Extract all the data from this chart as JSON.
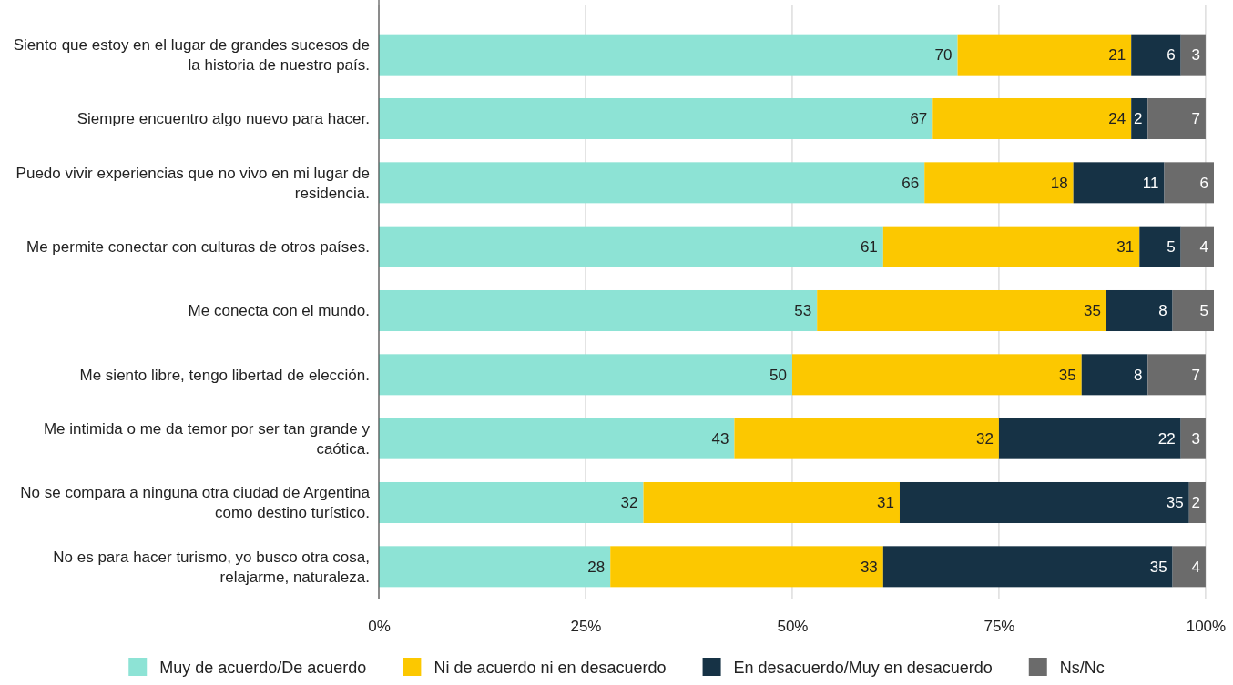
{
  "chart_data": {
    "type": "bar",
    "orientation": "horizontal",
    "stacked": true,
    "data_labels": true,
    "grid": "x",
    "legend": "bottom",
    "categories": [
      "Siento que estoy en el lugar de grandes sucesos de la historia de nuestro país.",
      "Siempre encuentro algo nuevo para hacer.",
      "Puedo vivir experiencias que no vivo en mi lugar de residencia.",
      "Me permite conectar con culturas de otros países.",
      "Me conecta con el mundo.",
      "Me siento libre, tengo libertad de elección.",
      "Me intimida o me da temor por ser tan grande y caótica.",
      "No se compara a ninguna otra ciudad de Argentina como destino turístico.",
      "No es para hacer turismo, yo busco otra cosa, relajarme, naturaleza."
    ],
    "series": [
      {
        "name": "Muy de acuerdo/De acuerdo",
        "color": "#8de3d5",
        "values": [
          70,
          67,
          66,
          61,
          53,
          50,
          43,
          32,
          28
        ]
      },
      {
        "name": "Ni de acuerdo ni en desacuerdo",
        "color": "#fcc800",
        "values": [
          21,
          24,
          18,
          31,
          35,
          35,
          32,
          31,
          33
        ]
      },
      {
        "name": "En desacuerdo/Muy en desacuerdo",
        "color": "#163245",
        "values": [
          6,
          2,
          11,
          5,
          8,
          8,
          22,
          35,
          35
        ]
      },
      {
        "name": "Ns/Nc",
        "color": "#6b6b6b",
        "values": [
          3,
          7,
          6,
          4,
          5,
          7,
          3,
          2,
          4
        ]
      }
    ],
    "xlim": [
      0,
      101
    ],
    "xticks": [
      {
        "value": 0,
        "label": "0%"
      },
      {
        "value": 25,
        "label": "25%"
      },
      {
        "value": 50,
        "label": "50%"
      },
      {
        "value": 75,
        "label": "75%"
      },
      {
        "value": 100,
        "label": "100%"
      }
    ]
  }
}
